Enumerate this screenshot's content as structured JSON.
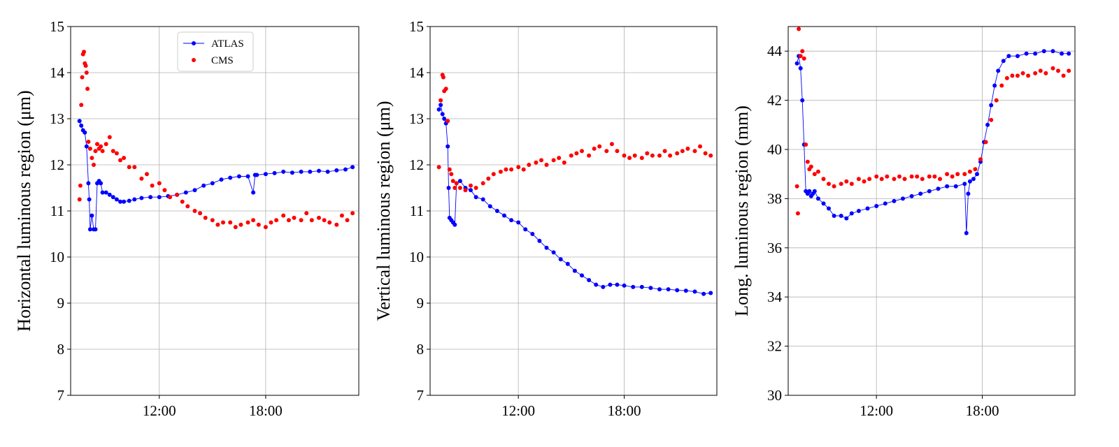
{
  "chart_data": [
    {
      "type": "scatter",
      "ylabel": "Horizontal luminous region (μm)",
      "xlabel": "",
      "ylim": [
        7,
        15
      ],
      "yticks": [
        7,
        8,
        9,
        10,
        11,
        12,
        13,
        14,
        15
      ],
      "xlim": [
        7.0,
        23.25
      ],
      "xticks": [
        12,
        18
      ],
      "xtick_labels": [
        "12:00",
        "18:00"
      ],
      "grid": true,
      "legend": {
        "placement": "top-center",
        "entries": [
          "ATLAS",
          "CMS"
        ]
      },
      "series": [
        {
          "name": "ATLAS",
          "color": "#0000ff",
          "style": "line-marker",
          "x": [
            7.5,
            7.6,
            7.7,
            7.8,
            7.9,
            8.0,
            8.05,
            8.1,
            8.2,
            8.3,
            8.4,
            8.5,
            8.6,
            8.7,
            8.8,
            9.0,
            9.2,
            9.4,
            9.6,
            9.8,
            10.0,
            10.3,
            10.6,
            11.0,
            11.5,
            12.0,
            12.5,
            13.0,
            13.5,
            14.0,
            14.5,
            15.0,
            15.5,
            16.0,
            16.5,
            17.0,
            17.3,
            17.4,
            17.5,
            18.0,
            18.5,
            19.0,
            19.5,
            20.0,
            20.5,
            21.0,
            21.5,
            22.0,
            22.5,
            22.9
          ],
          "y": [
            12.95,
            12.85,
            12.75,
            12.7,
            12.4,
            11.6,
            11.25,
            10.6,
            10.9,
            10.6,
            10.6,
            11.6,
            11.65,
            11.6,
            11.4,
            11.4,
            11.35,
            11.3,
            11.25,
            11.2,
            11.2,
            11.22,
            11.25,
            11.28,
            11.3,
            11.3,
            11.32,
            11.35,
            11.4,
            11.45,
            11.55,
            11.6,
            11.68,
            11.72,
            11.75,
            11.75,
            11.4,
            11.78,
            11.78,
            11.8,
            11.82,
            11.85,
            11.83,
            11.85,
            11.85,
            11.87,
            11.85,
            11.88,
            11.9,
            11.95
          ]
        },
        {
          "name": "CMS",
          "color": "#ff0000",
          "style": "marker",
          "x": [
            7.5,
            7.55,
            7.6,
            7.65,
            7.7,
            7.75,
            7.8,
            7.85,
            7.9,
            7.95,
            8.0,
            8.1,
            8.2,
            8.3,
            8.4,
            8.5,
            8.6,
            8.7,
            8.8,
            9.0,
            9.2,
            9.4,
            9.6,
            9.8,
            10.0,
            10.3,
            10.6,
            11.0,
            11.3,
            11.6,
            12.0,
            12.3,
            12.6,
            13.0,
            13.3,
            13.6,
            14.0,
            14.3,
            14.6,
            15.0,
            15.3,
            15.6,
            16.0,
            16.3,
            16.6,
            17.0,
            17.3,
            17.6,
            18.0,
            18.3,
            18.6,
            19.0,
            19.3,
            19.6,
            20.0,
            20.3,
            20.6,
            21.0,
            21.3,
            21.6,
            22.0,
            22.3,
            22.6,
            22.9
          ],
          "y": [
            11.25,
            11.55,
            13.3,
            13.9,
            14.4,
            14.45,
            14.2,
            14.15,
            14.0,
            13.65,
            12.5,
            12.35,
            12.15,
            12.0,
            12.3,
            12.45,
            12.35,
            12.4,
            12.3,
            12.45,
            12.6,
            12.3,
            12.25,
            12.1,
            12.15,
            11.95,
            11.95,
            11.7,
            11.8,
            11.55,
            11.6,
            11.45,
            11.3,
            11.35,
            11.2,
            11.1,
            11.0,
            10.95,
            10.85,
            10.8,
            10.7,
            10.75,
            10.75,
            10.65,
            10.7,
            10.75,
            10.8,
            10.7,
            10.65,
            10.75,
            10.8,
            10.9,
            10.8,
            10.85,
            10.8,
            10.95,
            10.8,
            10.85,
            10.8,
            10.75,
            10.7,
            10.9,
            10.8,
            10.95
          ]
        }
      ]
    },
    {
      "type": "scatter",
      "ylabel": "Vertical luminous region (μm)",
      "xlabel": "",
      "ylim": [
        7,
        15
      ],
      "yticks": [
        7,
        8,
        9,
        10,
        11,
        12,
        13,
        14,
        15
      ],
      "xlim": [
        7.0,
        23.25
      ],
      "xticks": [
        12,
        18
      ],
      "xtick_labels": [
        "12:00",
        "18:00"
      ],
      "grid": true,
      "series": [
        {
          "name": "ATLAS",
          "color": "#0000ff",
          "style": "line-marker",
          "x": [
            7.5,
            7.6,
            7.7,
            7.8,
            7.9,
            8.0,
            8.05,
            8.1,
            8.2,
            8.3,
            8.4,
            8.5,
            8.7,
            9.0,
            9.3,
            9.6,
            10.0,
            10.4,
            10.8,
            11.2,
            11.6,
            12.0,
            12.4,
            12.8,
            13.2,
            13.6,
            14.0,
            14.4,
            14.8,
            15.2,
            15.6,
            16.0,
            16.4,
            16.8,
            17.2,
            17.6,
            18.0,
            18.5,
            19.0,
            19.5,
            20.0,
            20.5,
            21.0,
            21.5,
            22.0,
            22.5,
            22.9
          ],
          "y": [
            13.2,
            13.3,
            13.1,
            13.0,
            12.9,
            12.4,
            11.5,
            10.85,
            10.8,
            10.75,
            10.7,
            11.6,
            11.65,
            11.5,
            11.45,
            11.3,
            11.25,
            11.1,
            11.0,
            10.9,
            10.8,
            10.75,
            10.6,
            10.5,
            10.35,
            10.2,
            10.1,
            9.95,
            9.85,
            9.7,
            9.6,
            9.5,
            9.4,
            9.35,
            9.4,
            9.4,
            9.38,
            9.35,
            9.35,
            9.33,
            9.3,
            9.3,
            9.28,
            9.27,
            9.25,
            9.2,
            9.22
          ]
        },
        {
          "name": "CMS",
          "color": "#ff0000",
          "style": "marker",
          "x": [
            7.5,
            7.6,
            7.7,
            7.75,
            7.8,
            7.9,
            8.0,
            8.1,
            8.2,
            8.3,
            8.4,
            8.5,
            8.7,
            9.0,
            9.3,
            9.6,
            10.0,
            10.3,
            10.6,
            11.0,
            11.3,
            11.6,
            12.0,
            12.3,
            12.6,
            13.0,
            13.3,
            13.6,
            14.0,
            14.3,
            14.6,
            15.0,
            15.3,
            15.6,
            16.0,
            16.3,
            16.6,
            17.0,
            17.3,
            17.6,
            18.0,
            18.3,
            18.6,
            19.0,
            19.3,
            19.6,
            20.0,
            20.3,
            20.6,
            21.0,
            21.3,
            21.6,
            22.0,
            22.3,
            22.6,
            22.9
          ],
          "y": [
            11.95,
            13.4,
            13.95,
            13.9,
            13.6,
            13.65,
            12.95,
            11.9,
            11.8,
            11.65,
            11.5,
            11.6,
            11.5,
            11.45,
            11.55,
            11.5,
            11.6,
            11.7,
            11.8,
            11.85,
            11.9,
            11.9,
            11.95,
            11.9,
            12.0,
            12.05,
            12.1,
            12.0,
            12.1,
            12.15,
            12.05,
            12.2,
            12.25,
            12.3,
            12.2,
            12.35,
            12.4,
            12.3,
            12.45,
            12.3,
            12.2,
            12.15,
            12.2,
            12.15,
            12.25,
            12.2,
            12.2,
            12.3,
            12.2,
            12.25,
            12.3,
            12.35,
            12.3,
            12.4,
            12.25,
            12.2
          ]
        }
      ]
    },
    {
      "type": "scatter",
      "ylabel": "Long. luminous region (mm)",
      "xlabel": "",
      "ylim": [
        30,
        45
      ],
      "yticks": [
        30,
        32,
        34,
        36,
        38,
        40,
        42,
        44
      ],
      "xlim": [
        7.0,
        23.25
      ],
      "xticks": [
        12,
        18
      ],
      "xtick_labels": [
        "12:00",
        "18:00"
      ],
      "grid": true,
      "series": [
        {
          "name": "ATLAS",
          "color": "#0000ff",
          "style": "line-marker",
          "x": [
            7.5,
            7.6,
            7.7,
            7.8,
            7.9,
            8.0,
            8.1,
            8.2,
            8.3,
            8.4,
            8.5,
            8.7,
            9.0,
            9.3,
            9.6,
            10.0,
            10.3,
            10.6,
            11.0,
            11.5,
            12.0,
            12.5,
            13.0,
            13.5,
            14.0,
            14.5,
            15.0,
            15.5,
            16.0,
            16.5,
            17.0,
            17.1,
            17.2,
            17.3,
            17.5,
            17.7,
            17.9,
            18.1,
            18.3,
            18.5,
            18.7,
            18.9,
            19.2,
            19.5,
            20.0,
            20.5,
            21.0,
            21.5,
            22.0,
            22.5,
            22.9
          ],
          "y": [
            43.5,
            43.8,
            43.3,
            42.0,
            40.2,
            38.3,
            38.2,
            38.3,
            38.1,
            38.2,
            38.3,
            38.0,
            37.8,
            37.6,
            37.3,
            37.3,
            37.2,
            37.4,
            37.5,
            37.6,
            37.7,
            37.8,
            37.9,
            38.0,
            38.1,
            38.2,
            38.3,
            38.4,
            38.5,
            38.5,
            38.6,
            36.6,
            38.2,
            38.7,
            38.8,
            39.0,
            39.5,
            40.3,
            41.0,
            41.8,
            42.6,
            43.2,
            43.6,
            43.8,
            43.8,
            43.9,
            43.9,
            44.0,
            44.0,
            43.9,
            43.9
          ]
        },
        {
          "name": "CMS",
          "color": "#ff0000",
          "style": "marker",
          "x": [
            7.5,
            7.55,
            7.6,
            7.7,
            7.8,
            7.9,
            8.0,
            8.1,
            8.2,
            8.3,
            8.5,
            8.7,
            9.0,
            9.3,
            9.6,
            10.0,
            10.3,
            10.6,
            11.0,
            11.3,
            11.6,
            12.0,
            12.3,
            12.6,
            13.0,
            13.3,
            13.6,
            14.0,
            14.3,
            14.6,
            15.0,
            15.3,
            15.6,
            16.0,
            16.3,
            16.6,
            17.0,
            17.3,
            17.6,
            17.9,
            18.2,
            18.5,
            18.8,
            19.1,
            19.4,
            19.7,
            20.0,
            20.3,
            20.6,
            21.0,
            21.3,
            21.6,
            22.0,
            22.3,
            22.6,
            22.9
          ],
          "y": [
            38.5,
            37.4,
            44.9,
            43.8,
            44.0,
            43.7,
            40.2,
            39.5,
            39.2,
            39.3,
            39.0,
            39.1,
            38.8,
            38.6,
            38.5,
            38.6,
            38.7,
            38.6,
            38.8,
            38.7,
            38.8,
            38.9,
            38.8,
            38.9,
            38.8,
            38.9,
            38.8,
            38.9,
            38.9,
            38.8,
            38.9,
            38.9,
            38.8,
            39.0,
            38.9,
            39.0,
            39.0,
            39.1,
            39.2,
            39.6,
            40.3,
            41.2,
            42.0,
            42.6,
            42.9,
            43.0,
            43.0,
            43.1,
            43.0,
            43.1,
            43.2,
            43.1,
            43.3,
            43.2,
            43.0,
            43.2
          ]
        }
      ]
    }
  ]
}
